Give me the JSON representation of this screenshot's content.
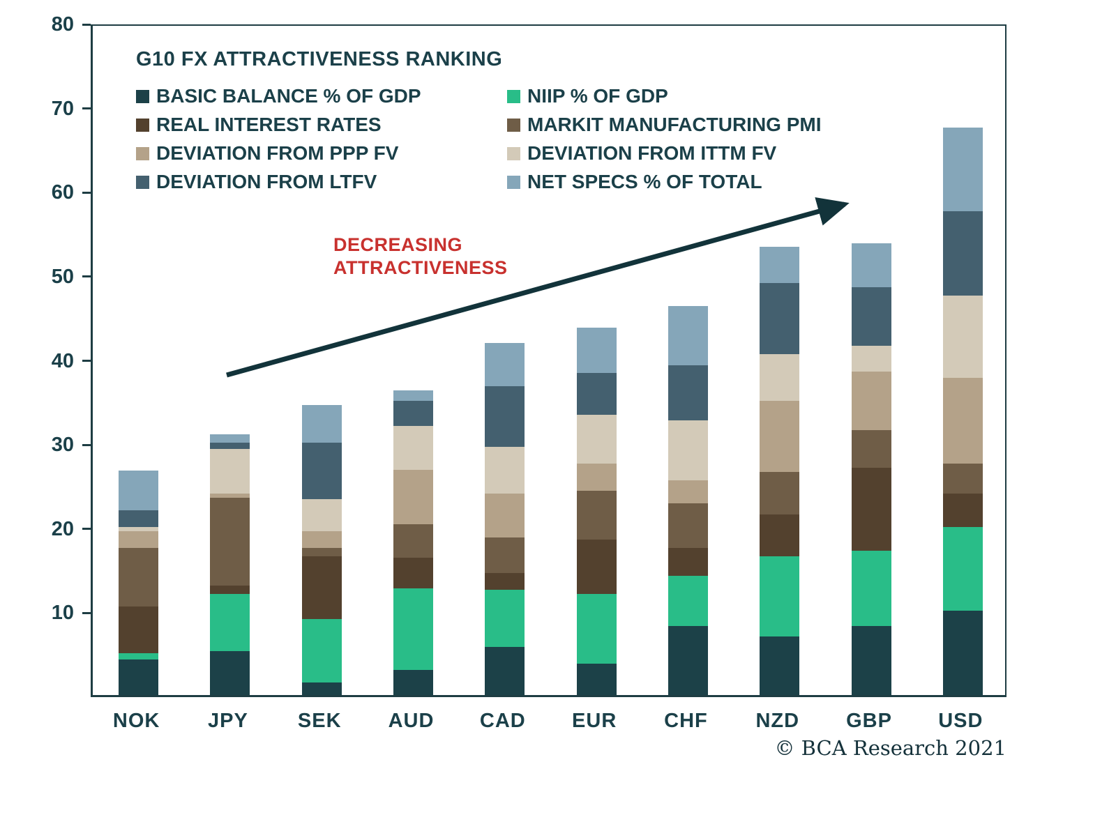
{
  "chart_data": {
    "type": "bar",
    "subtype": "stacked",
    "title": "G10 FX ATTRACTIVENESS RANKING",
    "categories": [
      "NOK",
      "JPY",
      "SEK",
      "AUD",
      "CAD",
      "EUR",
      "CHF",
      "NZD",
      "GBP",
      "USD"
    ],
    "series": [
      {
        "name": "BASIC BALANCE % OF GDP",
        "color": "#1c4148",
        "values": [
          4.2,
          5.2,
          1.5,
          3.0,
          5.7,
          3.7,
          8.2,
          7.0,
          8.2,
          10.0
        ]
      },
      {
        "name": "NIIP % OF GDP",
        "color": "#29bd88",
        "values": [
          0.8,
          6.8,
          7.5,
          9.7,
          6.8,
          8.3,
          6.0,
          9.5,
          9.0,
          10.0
        ]
      },
      {
        "name": "REAL INTEREST RATES",
        "color": "#53412e",
        "values": [
          5.5,
          1.0,
          7.5,
          3.6,
          2.0,
          6.5,
          3.3,
          5.0,
          9.8,
          4.0
        ]
      },
      {
        "name": "MARKIT MANUFACTURING PMI",
        "color": "#6f5d47",
        "values": [
          7.0,
          10.5,
          1.0,
          4.0,
          4.2,
          5.8,
          5.3,
          5.0,
          4.5,
          3.5
        ]
      },
      {
        "name": "DEVIATION FROM PPP FV",
        "color": "#b4a289",
        "values": [
          2.0,
          0.5,
          2.0,
          6.5,
          5.3,
          3.2,
          2.7,
          8.5,
          7.0,
          10.2
        ]
      },
      {
        "name": "DEVIATION FROM ITTM FV",
        "color": "#d3cab8",
        "values": [
          0.5,
          5.3,
          3.8,
          5.2,
          5.5,
          5.8,
          7.2,
          5.5,
          3.0,
          9.8
        ]
      },
      {
        "name": "DEVIATION FROM LTFV",
        "color": "#44606f",
        "values": [
          2.0,
          0.7,
          6.7,
          3.0,
          7.2,
          5.0,
          6.5,
          8.5,
          7.0,
          10.0
        ]
      },
      {
        "name": "NET SPECS % OF TOTAL",
        "color": "#85a6b9",
        "values": [
          4.7,
          1.0,
          4.5,
          1.2,
          5.2,
          5.4,
          7.1,
          4.3,
          5.2,
          10.0
        ]
      }
    ],
    "totals": [
      26.7,
      31.0,
      34.5,
      36.2,
      41.9,
      43.7,
      46.3,
      53.3,
      53.7,
      67.5
    ],
    "ylim": [
      0,
      80
    ],
    "yticks": [
      10,
      20,
      30,
      40,
      50,
      60,
      70,
      80
    ],
    "grid": false,
    "legend_position": "inside top-left"
  },
  "annotation": {
    "line1": "DECREASING",
    "line2": "ATTRACTIVENESS",
    "color": "#c8312e"
  },
  "footer": {
    "credit": "© BCA Research 2021"
  },
  "colors": {
    "axis": "#1e3d43",
    "text": "#1b4049",
    "arrow": "#12333a",
    "background": "#ffffff"
  }
}
